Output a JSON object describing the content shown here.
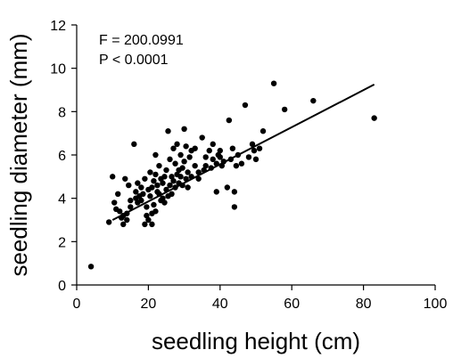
{
  "chart_data": {
    "type": "scatter",
    "xlabel": "seedling height (cm)",
    "ylabel": "seedling diameter (mm)",
    "xlim": [
      0,
      100
    ],
    "ylim": [
      0,
      12
    ],
    "xticks": [
      0,
      20,
      40,
      60,
      80,
      100
    ],
    "yticks": [
      0,
      2,
      4,
      6,
      8,
      10,
      12
    ],
    "grid": false,
    "annotations": [
      "F = 200.0991",
      "P < 0.0001"
    ],
    "fit_line": {
      "x": [
        10,
        83
      ],
      "y": [
        3.0,
        9.25
      ]
    },
    "points": [
      [
        4,
        0.85
      ],
      [
        9,
        2.9
      ],
      [
        10,
        5.0
      ],
      [
        10.5,
        3.8
      ],
      [
        11,
        3.5
      ],
      [
        11.5,
        4.2
      ],
      [
        12,
        3.4
      ],
      [
        12.5,
        3.1
      ],
      [
        13,
        3.2
      ],
      [
        13,
        2.8
      ],
      [
        13.5,
        4.9
      ],
      [
        14,
        3.3
      ],
      [
        14,
        3.0
      ],
      [
        14.5,
        4.6
      ],
      [
        15,
        3.6
      ],
      [
        15,
        3.9
      ],
      [
        16,
        6.5
      ],
      [
        16.5,
        4.0
      ],
      [
        16.5,
        4.3
      ],
      [
        17,
        3.8
      ],
      [
        17,
        4.7
      ],
      [
        17.5,
        4.1
      ],
      [
        18,
        4.5
      ],
      [
        18,
        3.9
      ],
      [
        18.5,
        4.2
      ],
      [
        19,
        4.9
      ],
      [
        19,
        2.8
      ],
      [
        19.5,
        3.6
      ],
      [
        19.5,
        3.2
      ],
      [
        20,
        4.4
      ],
      [
        20,
        3.0
      ],
      [
        20.5,
        4.1
      ],
      [
        20.5,
        5.2
      ],
      [
        21,
        2.8
      ],
      [
        21,
        3.3
      ],
      [
        21,
        4.5
      ],
      [
        21.5,
        3.7
      ],
      [
        21.5,
        4.8
      ],
      [
        22,
        5.1
      ],
      [
        22,
        6.0
      ],
      [
        22,
        3.4
      ],
      [
        22.5,
        4.3
      ],
      [
        22.5,
        4.6
      ],
      [
        23,
        4.2
      ],
      [
        23,
        5.5
      ],
      [
        23.5,
        3.9
      ],
      [
        23.5,
        4.9
      ],
      [
        24,
        4.7
      ],
      [
        24,
        4.0
      ],
      [
        24.5,
        5.0
      ],
      [
        24.5,
        3.8
      ],
      [
        25,
        4.4
      ],
      [
        25,
        5.3
      ],
      [
        25.5,
        4.1
      ],
      [
        25.5,
        7.1
      ],
      [
        26,
        4.6
      ],
      [
        26,
        5.8
      ],
      [
        26.5,
        4.2
      ],
      [
        26.5,
        5.0
      ],
      [
        27,
        4.8
      ],
      [
        27,
        6.3
      ],
      [
        27.5,
        4.5
      ],
      [
        27.5,
        5.6
      ],
      [
        28,
        5.1
      ],
      [
        28,
        6.5
      ],
      [
        28.5,
        4.7
      ],
      [
        28.5,
        5.3
      ],
      [
        29,
        5.0
      ],
      [
        29,
        6.0
      ],
      [
        29.5,
        4.6
      ],
      [
        29.5,
        5.4
      ],
      [
        30,
        7.2
      ],
      [
        30,
        5.7
      ],
      [
        30.5,
        4.9
      ],
      [
        30.5,
        6.4
      ],
      [
        31,
        5.2
      ],
      [
        31,
        4.5
      ],
      [
        31.5,
        5.9
      ],
      [
        32,
        6.2
      ],
      [
        32,
        5.0
      ],
      [
        33,
        5.5
      ],
      [
        33,
        6.3
      ],
      [
        34,
        4.9
      ],
      [
        34,
        5.2
      ],
      [
        35,
        6.8
      ],
      [
        35.5,
        5.3
      ],
      [
        36,
        5.5
      ],
      [
        36,
        5.9
      ],
      [
        37,
        6.2
      ],
      [
        37.5,
        5.4
      ],
      [
        38,
        6.5
      ],
      [
        38,
        5.8
      ],
      [
        39,
        5.6
      ],
      [
        39,
        4.3
      ],
      [
        39.5,
        6.0
      ],
      [
        40,
        5.9
      ],
      [
        40,
        6.2
      ],
      [
        40.5,
        5.5
      ],
      [
        41,
        5.7
      ],
      [
        42,
        4.5
      ],
      [
        42.5,
        7.6
      ],
      [
        43,
        5.8
      ],
      [
        43.5,
        6.3
      ],
      [
        44,
        3.6
      ],
      [
        44,
        4.3
      ],
      [
        44.5,
        5.5
      ],
      [
        45,
        6.0
      ],
      [
        46,
        5.6
      ],
      [
        47,
        8.3
      ],
      [
        48,
        5.9
      ],
      [
        49,
        6.5
      ],
      [
        49.5,
        6.2
      ],
      [
        50,
        5.8
      ],
      [
        51,
        6.3
      ],
      [
        52,
        7.1
      ],
      [
        55,
        9.3
      ],
      [
        58,
        8.1
      ],
      [
        66,
        8.5
      ],
      [
        83,
        7.7
      ]
    ]
  }
}
